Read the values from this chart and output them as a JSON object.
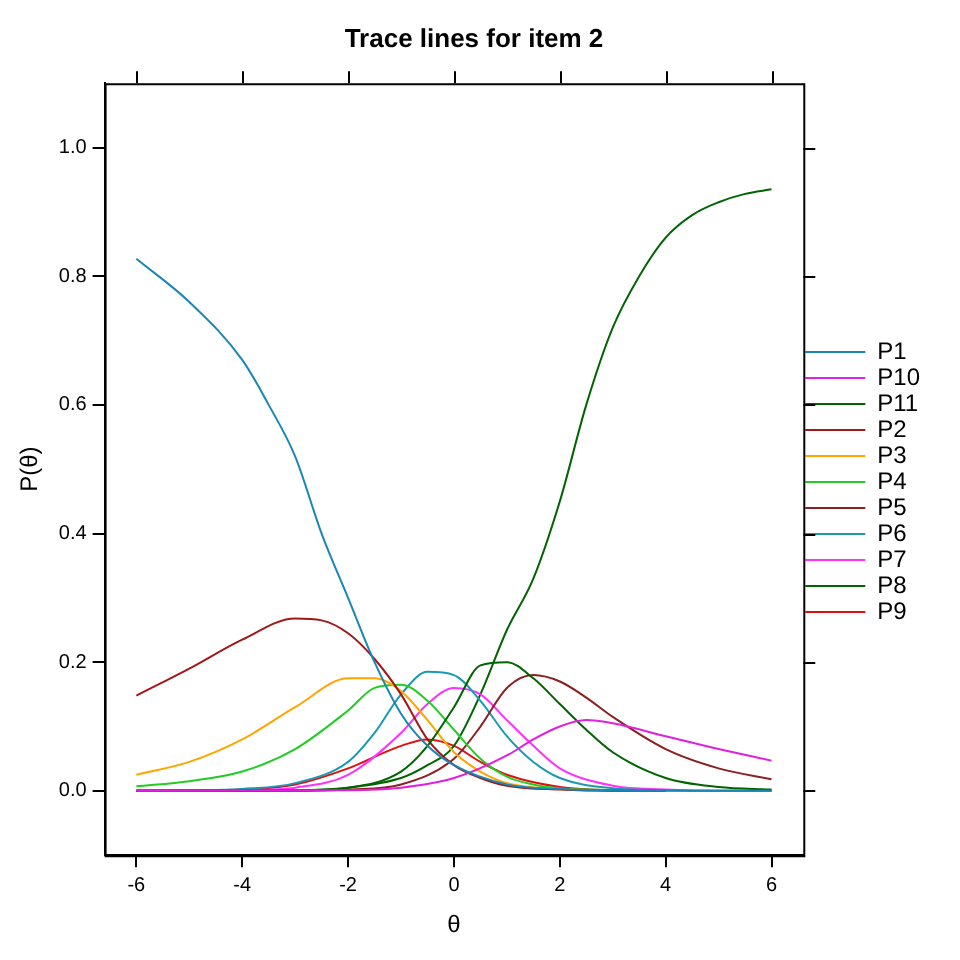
{
  "chart_data": {
    "type": "line",
    "title": "Trace lines for item 2",
    "xlabel": "θ",
    "ylabel": "P(θ)",
    "xlim": [
      -6.6,
      6.6
    ],
    "xticks": [
      -6,
      -4,
      -2,
      0,
      2,
      4,
      6
    ],
    "ylim": [
      -0.1,
      1.1
    ],
    "yticks": [
      {
        "value": 0,
        "label": "0.0"
      },
      {
        "value": 0.2,
        "label": "0.2"
      },
      {
        "value": 0.4,
        "label": "0.4"
      },
      {
        "value": 0.6,
        "label": "0.6"
      },
      {
        "value": 0.8,
        "label": "0.8"
      },
      {
        "value": 1,
        "label": "1.0"
      }
    ],
    "grid": false,
    "legend": "right",
    "marker": "none",
    "line_style": "solid",
    "series": [
      {
        "name": "P1",
        "color": "#1a86b8",
        "x": [
          -6,
          -5,
          -4,
          -3.5,
          -3,
          -2.5,
          -2,
          -1.5,
          -1,
          -0.5,
          0,
          1,
          2,
          3,
          4,
          5,
          6
        ],
        "values": [
          0.827,
          0.76,
          0.67,
          0.6,
          0.52,
          0.4,
          0.3,
          0.2,
          0.12,
          0.07,
          0.04,
          0.01,
          0.003,
          0.001,
          0,
          0,
          0
        ]
      },
      {
        "name": "P10",
        "color": "#e020e0",
        "x": [
          -6,
          -2,
          -1,
          0,
          1,
          1.5,
          2,
          2.5,
          3,
          4,
          5,
          6
        ],
        "values": [
          0,
          0.001,
          0.005,
          0.02,
          0.055,
          0.08,
          0.1,
          0.11,
          0.105,
          0.085,
          0.065,
          0.047
        ]
      },
      {
        "name": "P11",
        "color": "#006400",
        "x": [
          -6,
          -3,
          -2,
          -1,
          -0.5,
          0,
          0.5,
          1,
          1.5,
          2,
          2.5,
          3,
          4,
          5,
          6
        ],
        "values": [
          0,
          0.001,
          0.005,
          0.03,
          0.07,
          0.13,
          0.195,
          0.2,
          0.175,
          0.135,
          0.095,
          0.06,
          0.02,
          0.006,
          0.002
        ]
      },
      {
        "name": "P2",
        "color": "#a01818",
        "x": [
          -6,
          -5,
          -4,
          -3,
          -2.5,
          -2,
          -1.5,
          -1,
          -0.5,
          0,
          0.5,
          1,
          2,
          3,
          4
        ],
        "values": [
          0.148,
          0.19,
          0.235,
          0.268,
          0.265,
          0.245,
          0.205,
          0.15,
          0.08,
          0.04,
          0.02,
          0.008,
          0.002,
          0,
          0
        ]
      },
      {
        "name": "P3",
        "color": "#ffa500",
        "x": [
          -6,
          -5,
          -4,
          -3,
          -2,
          -1.5,
          -1,
          -0.5,
          0,
          0.5,
          1,
          2,
          3
        ],
        "values": [
          0.025,
          0.045,
          0.08,
          0.13,
          0.175,
          0.175,
          0.155,
          0.11,
          0.06,
          0.03,
          0.012,
          0.003,
          0
        ]
      },
      {
        "name": "P4",
        "color": "#22cc22",
        "x": [
          -6,
          -5,
          -4,
          -3,
          -2,
          -1.5,
          -1,
          -0.5,
          0,
          0.5,
          1,
          1.5,
          2,
          3
        ],
        "values": [
          0.007,
          0.015,
          0.03,
          0.065,
          0.125,
          0.16,
          0.165,
          0.14,
          0.095,
          0.05,
          0.022,
          0.01,
          0.004,
          0.001
        ]
      },
      {
        "name": "P5",
        "color": "#8b2020",
        "x": [
          -6,
          -3,
          -2,
          -1,
          0,
          0.5,
          1,
          1.5,
          2,
          2.5,
          3,
          4,
          5,
          6
        ],
        "values": [
          0,
          0,
          0.002,
          0.01,
          0.05,
          0.1,
          0.16,
          0.18,
          0.17,
          0.145,
          0.115,
          0.065,
          0.035,
          0.018
        ]
      },
      {
        "name": "P6",
        "color": "#1a9ab0",
        "x": [
          -6,
          -5,
          -4,
          -3,
          -2,
          -1.5,
          -1,
          -0.5,
          0,
          0.5,
          1,
          1.5,
          2,
          3,
          4,
          5,
          6
        ],
        "values": [
          0,
          0.001,
          0.003,
          0.012,
          0.045,
          0.09,
          0.15,
          0.185,
          0.18,
          0.14,
          0.085,
          0.045,
          0.02,
          0.004,
          0.001,
          0,
          0
        ]
      },
      {
        "name": "P7",
        "color": "#ff30ff",
        "x": [
          -6,
          -4,
          -3,
          -2,
          -1,
          -0.5,
          0,
          0.5,
          1,
          1.5,
          2,
          3,
          4,
          5,
          6
        ],
        "values": [
          0,
          0.001,
          0.005,
          0.025,
          0.09,
          0.135,
          0.16,
          0.15,
          0.11,
          0.07,
          0.035,
          0.008,
          0.002,
          0,
          0
        ]
      },
      {
        "name": "P8",
        "color": "#006400",
        "x": [
          -6,
          -3,
          -2,
          -1,
          -0.5,
          0,
          0.5,
          1,
          1.5,
          2,
          2.5,
          3,
          3.5,
          4,
          4.5,
          5,
          5.5,
          6
        ],
        "values": [
          0,
          0.001,
          0.005,
          0.02,
          0.04,
          0.07,
          0.15,
          0.25,
          0.33,
          0.45,
          0.6,
          0.72,
          0.8,
          0.86,
          0.895,
          0.915,
          0.928,
          0.935
        ]
      },
      {
        "name": "P9",
        "color": "#e01010",
        "x": [
          -6,
          -4,
          -3,
          -2,
          -1,
          -0.5,
          0,
          0.5,
          1,
          2,
          3,
          4
        ],
        "values": [
          0,
          0.002,
          0.01,
          0.035,
          0.07,
          0.08,
          0.07,
          0.045,
          0.025,
          0.006,
          0.001,
          0
        ]
      }
    ]
  }
}
